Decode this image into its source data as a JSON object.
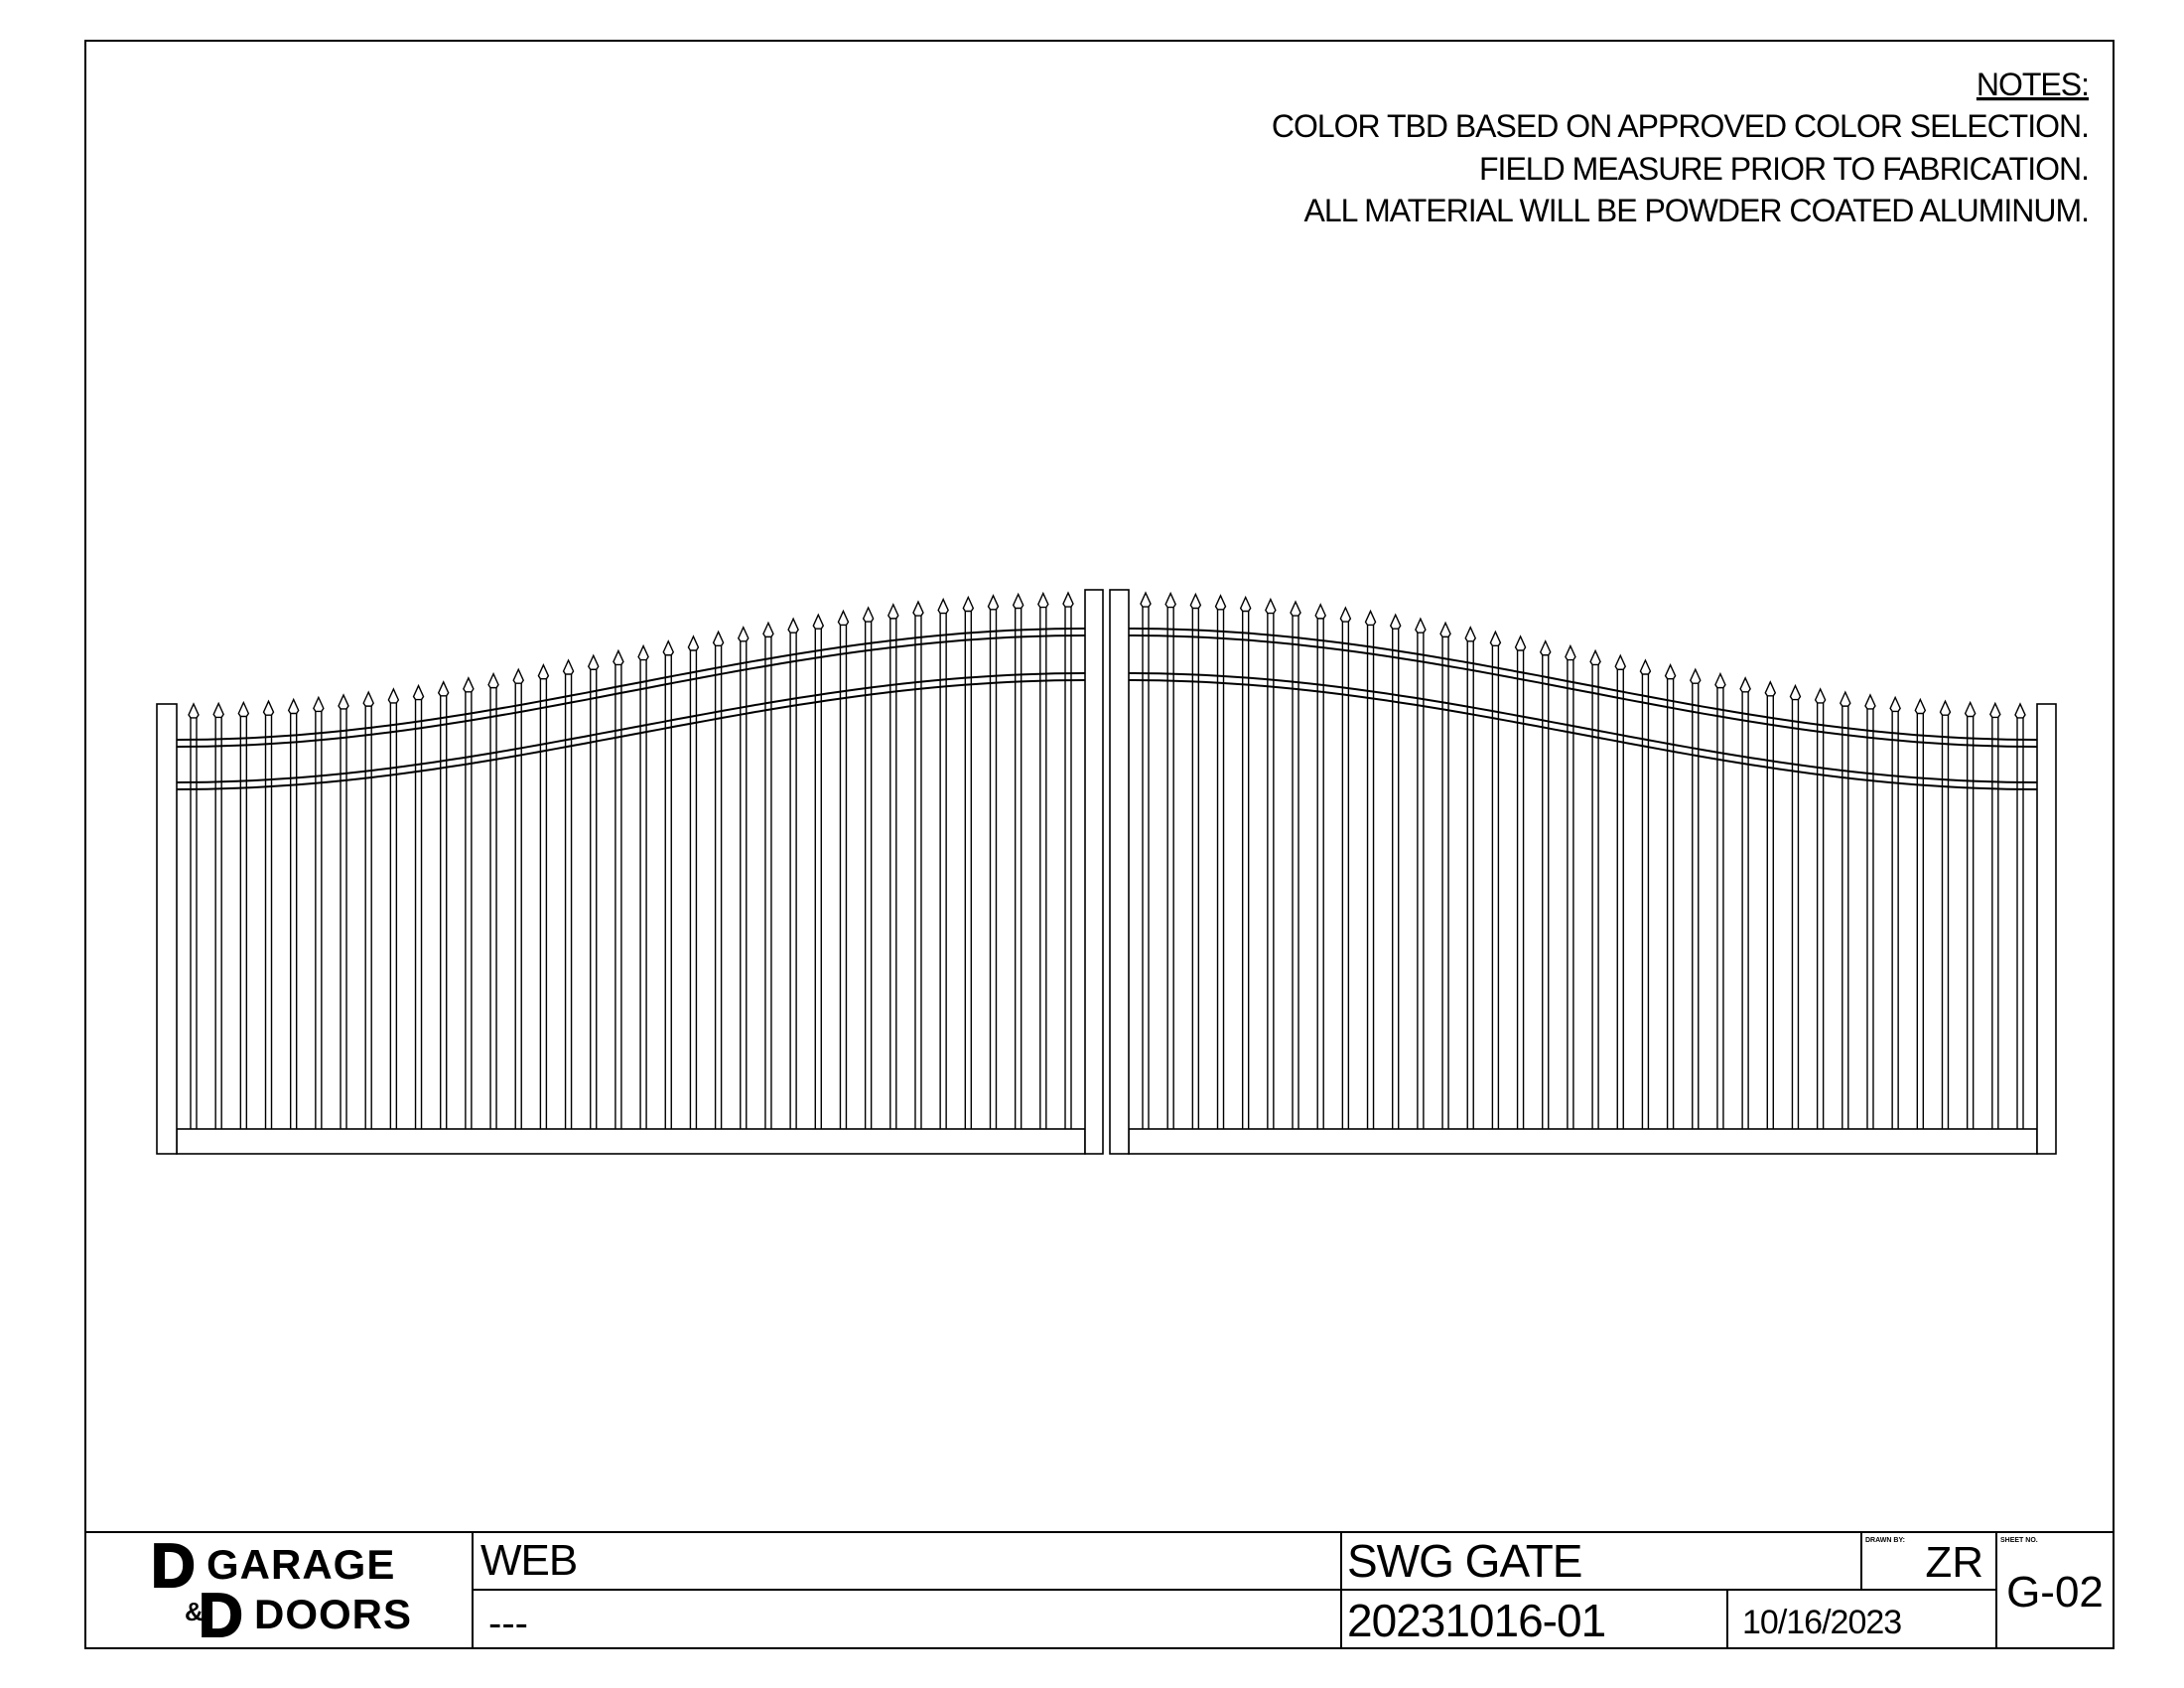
{
  "notes": {
    "title": "NOTES:",
    "lines": [
      "COLOR TBD BASED ON APPROVED COLOR SELECTION.",
      "FIELD MEASURE PRIOR TO FABRICATION.",
      "ALL MATERIAL WILL BE POWDER COATED ALUMINUM."
    ]
  },
  "logo": {
    "letter_1": "D",
    "ampersand": "&",
    "letter_2": "D",
    "line_1": "GARAGE",
    "line_2": "DOORS"
  },
  "title_block": {
    "client": "WEB",
    "address": "---",
    "drawing_title": "SWG GATE",
    "job_number": "20231016-01",
    "date": "10/16/2023",
    "drawn_by_label": "DRAWN BY:",
    "drawn_by": "ZR",
    "sheet_label": "SHEET NO.",
    "sheet_number": "G-02"
  }
}
